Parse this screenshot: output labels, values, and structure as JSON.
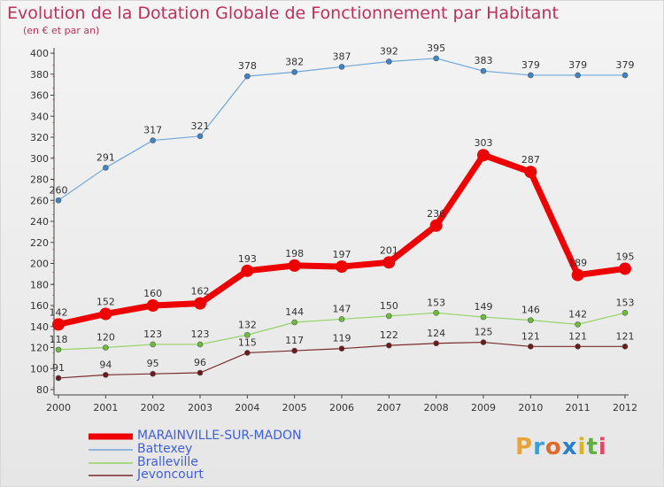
{
  "title": "Evolution de la Dotation Globale de Fonctionnement par Habitant",
  "subtitle": "(en € et par an)",
  "logo": {
    "letters": [
      "P",
      "r",
      "o",
      "x",
      "i",
      "t",
      "i"
    ],
    "colors": [
      "#e8a23a",
      "#3aa0d8",
      "#e06a2a",
      "#2a80c8",
      "#e0b020",
      "#60b040",
      "#e04a6a"
    ]
  },
  "chart_data": {
    "type": "line",
    "title": "Evolution de la Dotation Globale de Fonctionnement par Habitant",
    "ylabel": "(en € et par an)",
    "x": [
      "2000",
      "2001",
      "2002",
      "2003",
      "2004",
      "2005",
      "2006",
      "2007",
      "2008",
      "2009",
      "2010",
      "2011",
      "2012"
    ],
    "ylim": [
      80,
      400
    ],
    "yticks": [
      80,
      100,
      120,
      140,
      160,
      180,
      200,
      220,
      240,
      260,
      280,
      300,
      320,
      340,
      360,
      380,
      400
    ],
    "grid": false,
    "legend": "bottom-left",
    "series": [
      {
        "name": "MARAINVILLE-SUR-MADON",
        "color": "#ee0000",
        "point": "#ee0000",
        "width": 7,
        "marker": 7,
        "values": [
          142,
          152,
          160,
          162,
          193,
          198,
          197,
          201,
          236,
          303,
          287,
          189,
          195
        ],
        "labels": [
          "142",
          "152",
          "160",
          "162",
          "193",
          "198",
          "197",
          "201",
          "236",
          "303",
          "287",
          "189",
          "195"
        ]
      },
      {
        "name": "Battexey",
        "color": "#6fa8dc",
        "point": "#3d85c6",
        "width": 1.2,
        "marker": 3,
        "values": [
          260,
          291,
          317,
          321,
          378,
          382,
          387,
          392,
          395,
          383,
          379,
          379,
          379
        ],
        "labels": [
          "260",
          "291",
          "317",
          "321",
          "378",
          "382",
          "387",
          "392",
          "395",
          "383",
          "379",
          "379",
          "379"
        ]
      },
      {
        "name": "Bralleville",
        "color": "#93d466",
        "point": "#6abf3a",
        "width": 1.2,
        "marker": 3,
        "values": [
          118,
          120,
          123,
          123,
          132,
          144,
          147,
          150,
          153,
          149,
          146,
          142,
          153
        ],
        "labels": [
          "118",
          "120",
          "123",
          "123",
          "132",
          "144",
          "147",
          "150",
          "153",
          "149",
          "146",
          "142",
          "153"
        ]
      },
      {
        "name": "Jevoncourt",
        "color": "#7a2a2a",
        "point": "#6a1a1a",
        "width": 1.2,
        "marker": 3,
        "values": [
          91,
          94,
          95,
          96,
          115,
          117,
          119,
          122,
          124,
          125,
          121,
          121,
          121
        ],
        "labels": [
          "91",
          "94",
          "95",
          "96",
          "115",
          "117",
          "119",
          "122",
          "124",
          "125",
          "121",
          "121",
          "121"
        ]
      }
    ]
  }
}
